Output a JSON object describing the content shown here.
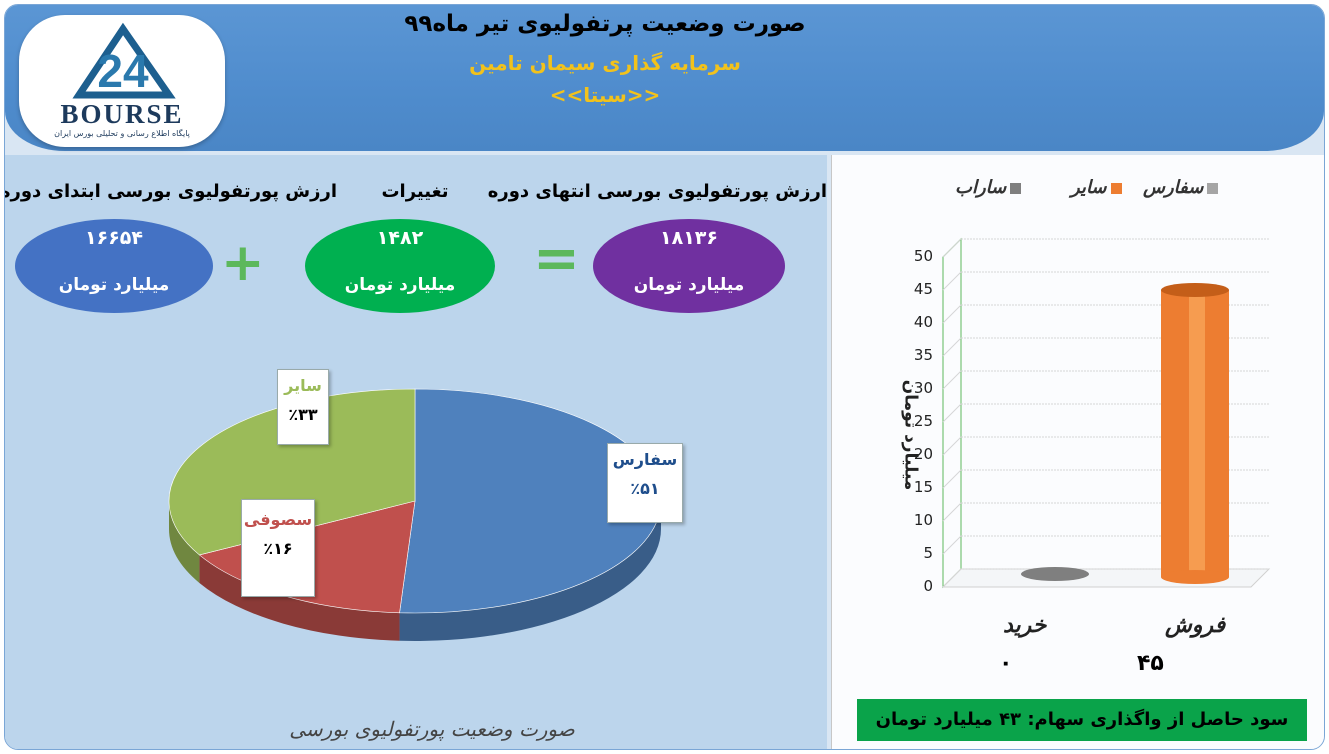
{
  "header": {
    "title": "صورت وضعیت پرتفولیوی تیر ماه۹۹",
    "subtitle": "سرمایه گذاری سیمان تامین",
    "ticker": "<<سیتا>>"
  },
  "logo": {
    "word": "BOURSE",
    "number": "24",
    "tagline": "پایگاه اطلاع رسانی و تحلیلی بورس ایران"
  },
  "summary": {
    "start_label": "ارزش پورتفولیوی بورسی ابتدای دوره",
    "start_value": "۱۶۶۵۴",
    "change_label": "تغییرات",
    "change_value": "۱۴۸۲",
    "end_label": "ارزش پورتفولیوی بورسی انتهای دوره",
    "end_value": "۱۸۱۳۶",
    "unit": "میلیارد تومان",
    "plus": "+",
    "equals": "="
  },
  "colors": {
    "blue": "#4472c4",
    "green": "#00b050",
    "purple": "#7030a0",
    "orange": "#ed7d31",
    "gray": "#7f7f7f"
  },
  "chart_data": [
    {
      "type": "pie",
      "title": "",
      "caption": "صورت وضعیت پورتفولیوی بورسی",
      "slices": [
        {
          "name": "سفارس",
          "value": 51,
          "label": "٪۵۱",
          "color": "#4f81bd"
        },
        {
          "name": "سصوفی",
          "value": 16,
          "label": "٪۱۶",
          "color": "#c0504d"
        },
        {
          "name": "سایر",
          "value": 33,
          "label": "٪۳۳",
          "color": "#9bbb59"
        }
      ]
    },
    {
      "type": "bar",
      "title": "",
      "ylabel": "میلیارد تومان",
      "ylim": [
        0,
        50
      ],
      "yticks": [
        "0",
        "5",
        "10",
        "15",
        "20",
        "25",
        "30",
        "35",
        "40",
        "45",
        "50"
      ],
      "grid": true,
      "legend_position": "top",
      "legend": [
        {
          "name": "سفارس",
          "color": "#a5a5a5"
        },
        {
          "name": "سایر",
          "color": "#ed7d31"
        },
        {
          "name": "ساراب",
          "color": "#7f7f7f"
        }
      ],
      "categories": [
        "خرید",
        "فروش"
      ],
      "values": [
        0,
        45
      ],
      "value_labels": [
        "۰",
        "۴۵"
      ],
      "series": [
        {
          "name": "سایر",
          "values": [
            0,
            45
          ]
        }
      ]
    }
  ],
  "footer": {
    "profit_text": "سود حاصل از واگذاری سهام: ۴۳ میلیارد تومان"
  }
}
